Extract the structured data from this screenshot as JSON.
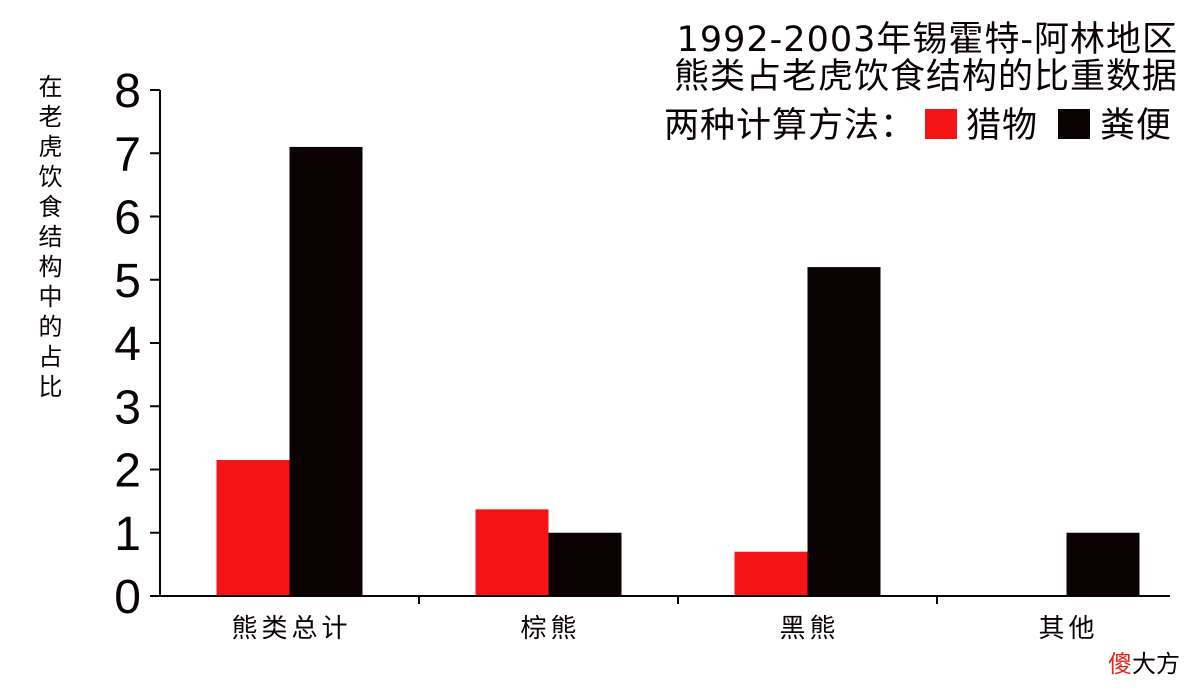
{
  "chart_data": {
    "type": "bar",
    "title_lines": [
      "1992-2003年锡霍特-阿林地区",
      "熊类占老虎饮食结构的比重数据"
    ],
    "legend_title": "两种计算方法：",
    "ylabel": "在老虎饮食结构中的占比",
    "xlabel": "",
    "categories": [
      "熊类总计",
      "棕熊",
      "黑熊",
      "其他"
    ],
    "series": [
      {
        "name": "猎物",
        "color": "#f41416",
        "values": [
          2.15,
          1.37,
          0.7,
          0
        ]
      },
      {
        "name": "粪便",
        "color": "#0b0203",
        "values": [
          7.1,
          1.0,
          5.2,
          1.0
        ]
      }
    ],
    "ylim": [
      0,
      8
    ],
    "yticks": [
      0,
      1,
      2,
      3,
      4,
      5,
      6,
      7,
      8
    ],
    "grid": false,
    "legend_position": "top-right"
  },
  "watermark": {
    "first": "傻",
    "rest": "大方",
    "first_color": "#e8231b"
  }
}
